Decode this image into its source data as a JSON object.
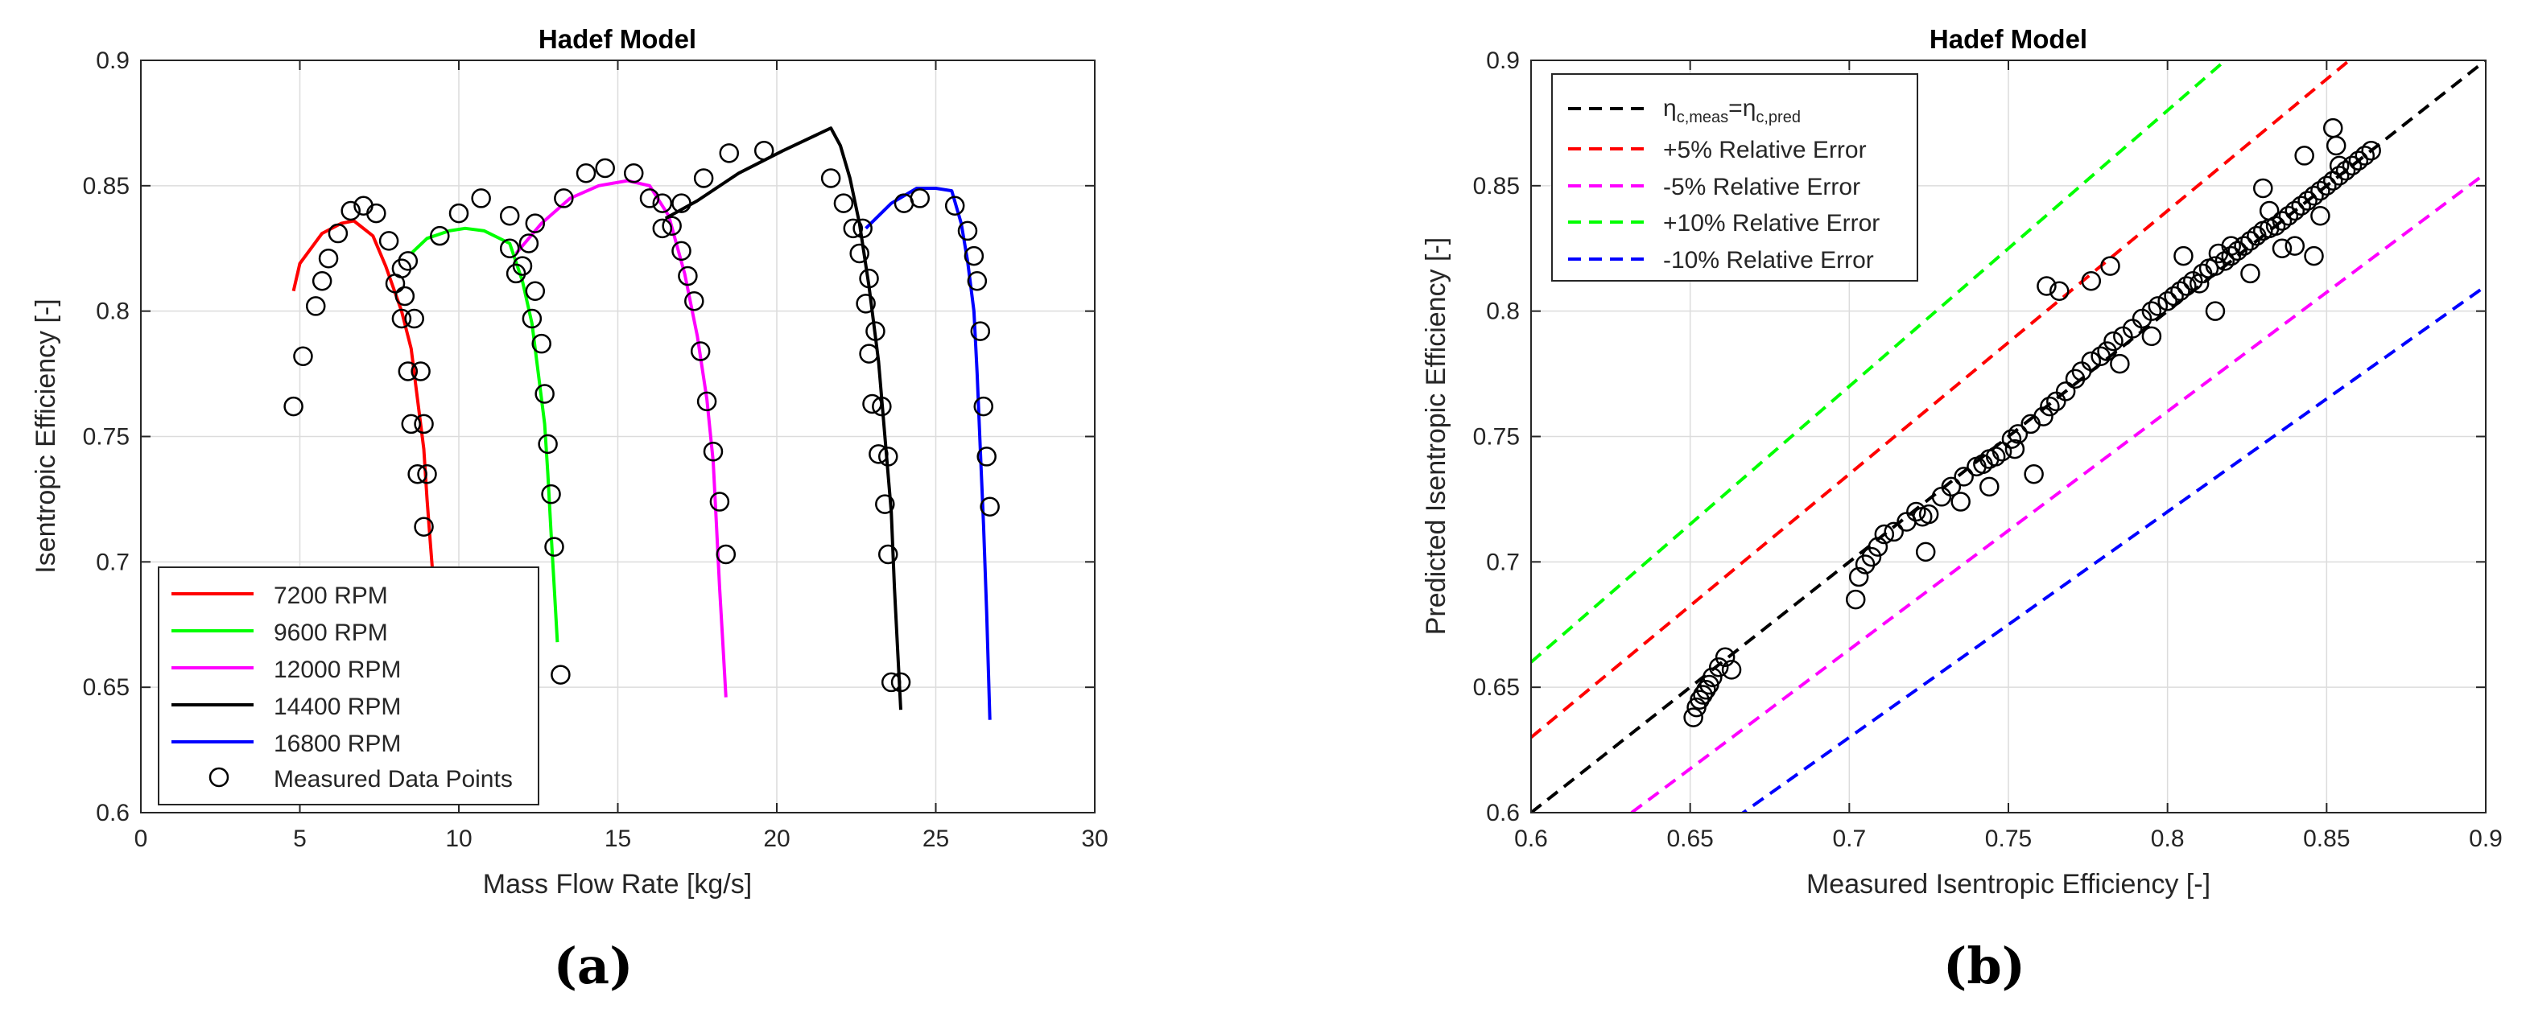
{
  "chart_data": [
    {
      "type": "line",
      "panel_label": "(a)",
      "title": "Hadef Model",
      "xlabel": "Mass Flow Rate [kg/s]",
      "ylabel": "Isentropic Efficiency [-]",
      "xlim": [
        0,
        30
      ],
      "ylim": [
        0.6,
        0.9
      ],
      "xticks": [
        0,
        5,
        10,
        15,
        20,
        25,
        30
      ],
      "yticks": [
        0.6,
        0.65,
        0.7,
        0.75,
        0.8,
        0.85,
        0.9
      ],
      "xtick_labels": [
        "0",
        "5",
        "10",
        "15",
        "20",
        "25",
        "30"
      ],
      "ytick_labels": [
        "0.6",
        "0.65",
        "0.7",
        "0.75",
        "0.8",
        "0.85",
        "0.9"
      ],
      "legend_position": "bottom-left",
      "series": [
        {
          "name": "7200 RPM",
          "color": "#ff0000",
          "style": "solid",
          "x": [
            4.8,
            5.0,
            5.7,
            6.3,
            6.7,
            7.3,
            7.7,
            8.2,
            8.5,
            8.7,
            8.9,
            9.0,
            9.1,
            9.2
          ],
          "y": [
            0.808,
            0.819,
            0.831,
            0.835,
            0.836,
            0.83,
            0.818,
            0.8,
            0.785,
            0.765,
            0.745,
            0.725,
            0.708,
            0.692
          ]
        },
        {
          "name": "9600 RPM",
          "color": "#00ff00",
          "style": "solid",
          "x": [
            8.5,
            9.0,
            9.7,
            10.2,
            10.8,
            11.6,
            12.0,
            12.3,
            12.5,
            12.7,
            12.8,
            12.9,
            13.0,
            13.1
          ],
          "y": [
            0.823,
            0.829,
            0.832,
            0.833,
            0.832,
            0.827,
            0.812,
            0.795,
            0.775,
            0.755,
            0.735,
            0.712,
            0.69,
            0.668
          ]
        },
        {
          "name": "12000 RPM",
          "color": "#ff00ff",
          "style": "solid",
          "x": [
            11.8,
            12.6,
            13.5,
            14.4,
            15.3,
            16.0,
            16.6,
            17.1,
            17.5,
            17.8,
            18.0,
            18.1,
            18.2,
            18.3,
            18.4
          ],
          "y": [
            0.823,
            0.835,
            0.845,
            0.85,
            0.852,
            0.85,
            0.838,
            0.815,
            0.79,
            0.765,
            0.74,
            0.715,
            0.69,
            0.668,
            0.646
          ]
        },
        {
          "name": "14400 RPM",
          "color": "#000000",
          "style": "solid",
          "x": [
            16.5,
            17.5,
            18.8,
            20.2,
            21.7,
            22.0,
            22.3,
            22.6,
            22.9,
            23.2,
            23.4,
            23.6,
            23.7,
            23.8,
            23.9
          ],
          "y": [
            0.837,
            0.844,
            0.855,
            0.864,
            0.873,
            0.866,
            0.853,
            0.835,
            0.81,
            0.78,
            0.75,
            0.72,
            0.69,
            0.665,
            0.641
          ]
        },
        {
          "name": "16800 RPM",
          "color": "#0000ff",
          "style": "solid",
          "x": [
            22.8,
            23.6,
            24.4,
            25.0,
            25.5,
            25.8,
            26.0,
            26.2,
            26.3,
            26.4,
            26.5,
            26.6,
            26.7
          ],
          "y": [
            0.833,
            0.843,
            0.849,
            0.849,
            0.848,
            0.835,
            0.82,
            0.8,
            0.775,
            0.745,
            0.715,
            0.68,
            0.637
          ]
        },
        {
          "name": "Measured Data Points",
          "marker": "circle",
          "color": "#000000",
          "x": [
            4.8,
            5.1,
            5.5,
            5.7,
            5.9,
            6.2,
            6.6,
            7.0,
            7.4,
            7.8,
            8.0,
            8.2,
            8.3,
            8.4,
            8.6,
            8.8,
            8.9,
            9.0,
            9.4,
            10.0,
            10.7,
            11.6,
            12.4,
            13.3,
            14.0,
            14.6,
            15.5,
            16.0,
            16.4,
            17.0,
            17.7,
            18.5,
            19.6,
            21.7,
            22.1,
            22.4,
            22.7,
            22.9,
            23.1,
            23.3,
            23.5,
            24.0,
            24.5,
            25.6,
            26.0,
            26.2,
            26.3,
            26.4,
            26.5,
            26.6,
            26.7,
            12.2,
            12.4,
            12.6,
            12.7,
            12.8,
            12.9,
            13.0,
            13.2,
            11.8,
            11.6,
            12.0,
            12.3,
            16.4,
            16.7,
            17.0,
            17.2,
            17.4,
            17.6,
            17.8,
            18.0,
            18.2,
            18.4,
            22.6,
            22.8,
            22.9,
            23.0,
            23.2,
            23.4,
            23.5,
            23.6,
            23.9,
            8.2,
            8.4,
            8.5,
            8.7,
            8.9
          ],
          "y": [
            0.762,
            0.782,
            0.802,
            0.812,
            0.821,
            0.831,
            0.84,
            0.842,
            0.839,
            0.828,
            0.811,
            0.817,
            0.806,
            0.82,
            0.797,
            0.776,
            0.755,
            0.735,
            0.83,
            0.839,
            0.845,
            0.838,
            0.835,
            0.845,
            0.855,
            0.857,
            0.855,
            0.845,
            0.833,
            0.843,
            0.853,
            0.863,
            0.864,
            0.853,
            0.843,
            0.833,
            0.833,
            0.813,
            0.792,
            0.762,
            0.742,
            0.843,
            0.845,
            0.842,
            0.832,
            0.822,
            0.812,
            0.792,
            0.762,
            0.742,
            0.722,
            0.827,
            0.808,
            0.787,
            0.767,
            0.747,
            0.727,
            0.706,
            0.655,
            0.815,
            0.825,
            0.818,
            0.797,
            0.843,
            0.834,
            0.824,
            0.814,
            0.804,
            0.784,
            0.764,
            0.744,
            0.724,
            0.703,
            0.823,
            0.803,
            0.783,
            0.763,
            0.743,
            0.723,
            0.703,
            0.652,
            0.652,
            0.797,
            0.776,
            0.755,
            0.735,
            0.714
          ],
          "note": "approximate"
        }
      ]
    },
    {
      "type": "scatter",
      "panel_label": "(b)",
      "title": "Hadef Model",
      "xlabel": "Measured Isentropic Efficiency [-]",
      "ylabel": "Predicted Isentropic Efficiency [-]",
      "xlim": [
        0.6,
        0.9
      ],
      "ylim": [
        0.6,
        0.9
      ],
      "xticks": [
        0.6,
        0.65,
        0.7,
        0.75,
        0.8,
        0.85,
        0.9
      ],
      "yticks": [
        0.6,
        0.65,
        0.7,
        0.75,
        0.8,
        0.85,
        0.9
      ],
      "xtick_labels": [
        "0.6",
        "0.65",
        "0.7",
        "0.75",
        "0.8",
        "0.85",
        "0.9"
      ],
      "ytick_labels": [
        "0.6",
        "0.65",
        "0.7",
        "0.75",
        "0.8",
        "0.85",
        "0.9"
      ],
      "legend_position": "top-left",
      "ref_lines": [
        {
          "name_parts": {
            "eta": "η",
            "sub1": "c,meas",
            "eq": "=",
            "sub2": "c,pred"
          },
          "factor": 1.0,
          "color": "#000000"
        },
        {
          "name": "+5% Relative Error",
          "factor": 1.05,
          "color": "#ff0000"
        },
        {
          "name": "-5% Relative Error",
          "factor": 0.95,
          "color": "#ff00ff"
        },
        {
          "name": "+10% Relative Error",
          "factor": 1.1,
          "color": "#00ff00"
        },
        {
          "name": "-10% Relative Error",
          "factor": 0.9,
          "color": "#0000ff"
        }
      ],
      "points": {
        "x": [
          0.651,
          0.652,
          0.653,
          0.654,
          0.655,
          0.656,
          0.657,
          0.659,
          0.661,
          0.663,
          0.702,
          0.703,
          0.705,
          0.707,
          0.709,
          0.711,
          0.714,
          0.718,
          0.721,
          0.723,
          0.725,
          0.729,
          0.732,
          0.736,
          0.74,
          0.742,
          0.744,
          0.746,
          0.748,
          0.751,
          0.753,
          0.757,
          0.761,
          0.763,
          0.765,
          0.768,
          0.771,
          0.773,
          0.776,
          0.779,
          0.781,
          0.783,
          0.786,
          0.789,
          0.792,
          0.795,
          0.797,
          0.8,
          0.802,
          0.804,
          0.806,
          0.808,
          0.811,
          0.813,
          0.815,
          0.818,
          0.82,
          0.822,
          0.824,
          0.826,
          0.828,
          0.83,
          0.832,
          0.834,
          0.836,
          0.838,
          0.84,
          0.842,
          0.844,
          0.846,
          0.848,
          0.85,
          0.852,
          0.854,
          0.856,
          0.858,
          0.86,
          0.862,
          0.864,
          0.762,
          0.766,
          0.776,
          0.782,
          0.752,
          0.758,
          0.81,
          0.816,
          0.83,
          0.843,
          0.852,
          0.853,
          0.854,
          0.832,
          0.84,
          0.846,
          0.724,
          0.735,
          0.744,
          0.785,
          0.795,
          0.805,
          0.815,
          0.82,
          0.826,
          0.836,
          0.848
        ],
        "y": [
          0.638,
          0.642,
          0.645,
          0.647,
          0.649,
          0.651,
          0.654,
          0.658,
          0.662,
          0.657,
          0.685,
          0.694,
          0.699,
          0.702,
          0.706,
          0.711,
          0.712,
          0.716,
          0.72,
          0.718,
          0.719,
          0.726,
          0.73,
          0.734,
          0.738,
          0.739,
          0.741,
          0.742,
          0.744,
          0.749,
          0.751,
          0.755,
          0.758,
          0.762,
          0.764,
          0.768,
          0.773,
          0.776,
          0.78,
          0.782,
          0.784,
          0.788,
          0.79,
          0.793,
          0.797,
          0.8,
          0.802,
          0.804,
          0.806,
          0.808,
          0.81,
          0.812,
          0.815,
          0.817,
          0.818,
          0.82,
          0.822,
          0.824,
          0.826,
          0.828,
          0.83,
          0.832,
          0.833,
          0.834,
          0.836,
          0.838,
          0.84,
          0.842,
          0.844,
          0.846,
          0.848,
          0.85,
          0.852,
          0.854,
          0.856,
          0.858,
          0.86,
          0.862,
          0.864,
          0.81,
          0.808,
          0.812,
          0.818,
          0.745,
          0.735,
          0.811,
          0.823,
          0.849,
          0.862,
          0.873,
          0.866,
          0.858,
          0.84,
          0.826,
          0.822,
          0.704,
          0.724,
          0.73,
          0.779,
          0.79,
          0.822,
          0.8,
          0.826,
          0.815,
          0.825,
          0.838
        ]
      }
    }
  ]
}
